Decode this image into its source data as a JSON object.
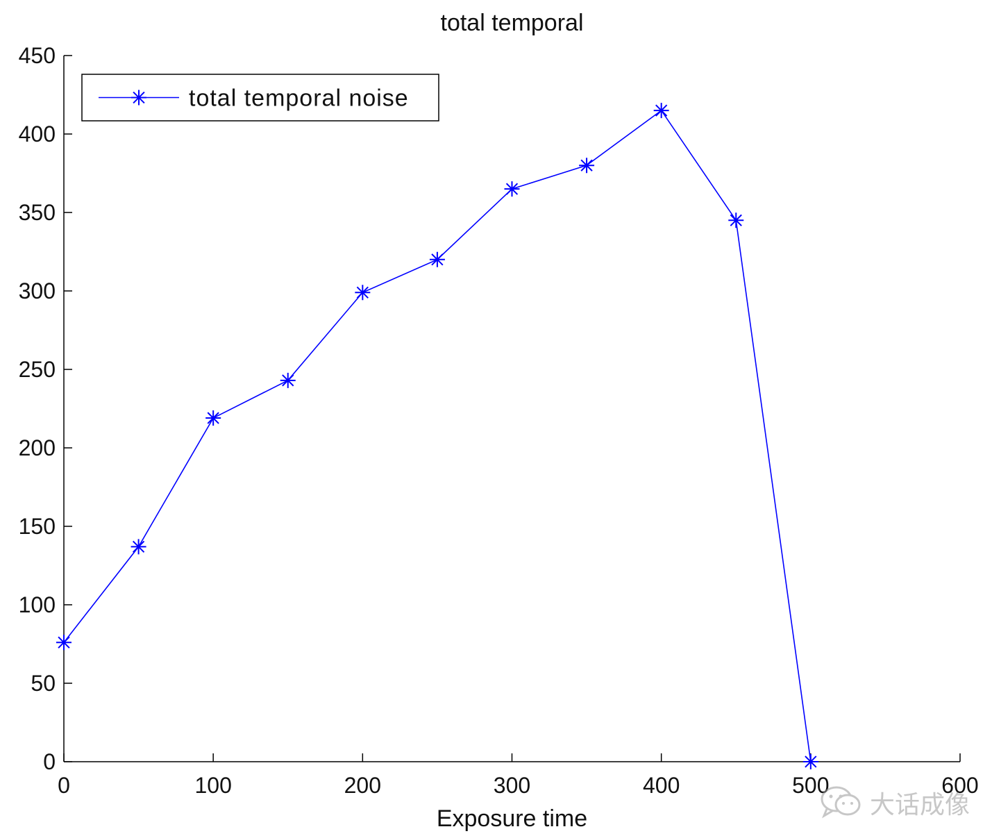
{
  "chart_data": {
    "type": "line",
    "title": "total temporal",
    "xlabel": "Exposure time",
    "ylabel": "",
    "xlim": [
      0,
      600
    ],
    "ylim": [
      0,
      450
    ],
    "xticks": [
      0,
      100,
      200,
      300,
      400,
      500,
      600
    ],
    "yticks": [
      0,
      50,
      100,
      150,
      200,
      250,
      300,
      350,
      400,
      450
    ],
    "grid": false,
    "legend_position": "top-left",
    "series": [
      {
        "name": "total temporal noise",
        "color": "#0000ff",
        "marker": "asterisk",
        "x": [
          0,
          50,
          100,
          150,
          200,
          250,
          300,
          350,
          400,
          450,
          500
        ],
        "y": [
          76,
          137,
          219,
          243,
          299,
          320,
          365,
          380,
          415,
          345,
          0
        ]
      }
    ]
  },
  "watermark": {
    "text": "大话成像",
    "icon": "wechat-icon"
  }
}
